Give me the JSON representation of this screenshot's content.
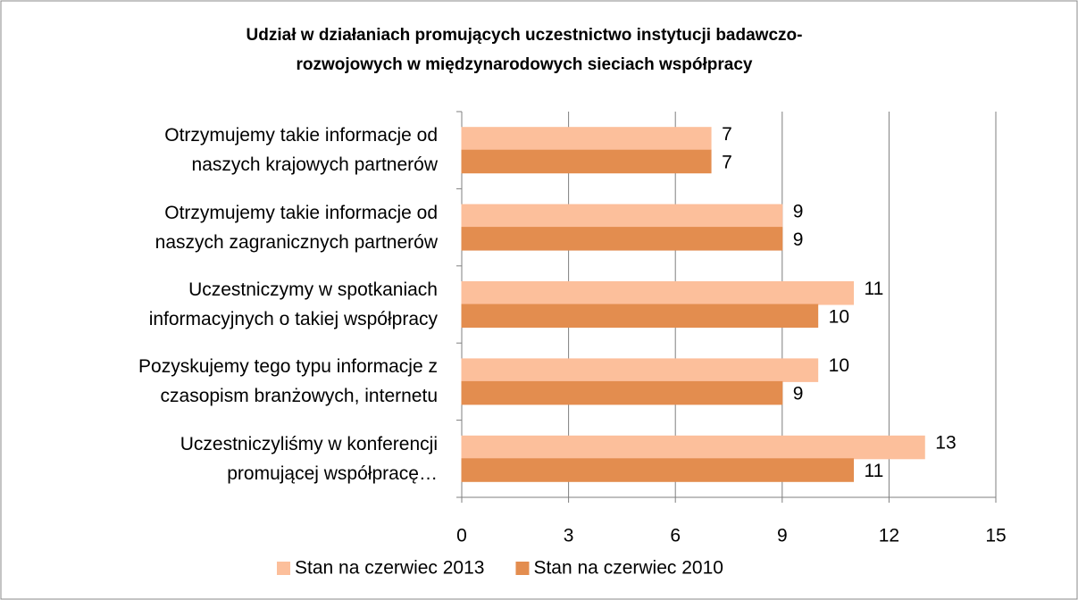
{
  "chart_data": {
    "type": "barh",
    "title": "Udział w działaniach promujących uczestnictwo instytucji badawczo-\nrozwojowych w międzynarodowych sieciach współpracy",
    "categories": [
      "Otrzymujemy takie informacje od\nnaszych krajowych partnerów",
      "Otrzymujemy takie informacje od\nnaszych zagranicznych partnerów",
      "Uczestniczymy w spotkaniach\ninformacyjnych o takiej współpracy",
      "Pozyskujemy tego typu informacje z\nczasopism branżowych, internetu",
      "Uczestniczyliśmy w konferencji\npromującej  współpracę…"
    ],
    "series": [
      {
        "name": "Stan na czerwiec 2013",
        "color": "#fcbf9b",
        "values": [
          7,
          9,
          11,
          10,
          13
        ]
      },
      {
        "name": "Stan na czerwiec 2010",
        "color": "#e38d4f",
        "values": [
          7,
          9,
          10,
          9,
          11
        ]
      }
    ],
    "xlim": [
      0,
      15
    ],
    "xticks": [
      0,
      3,
      6,
      9,
      12,
      15
    ],
    "grid": true,
    "legend": "bottom"
  }
}
